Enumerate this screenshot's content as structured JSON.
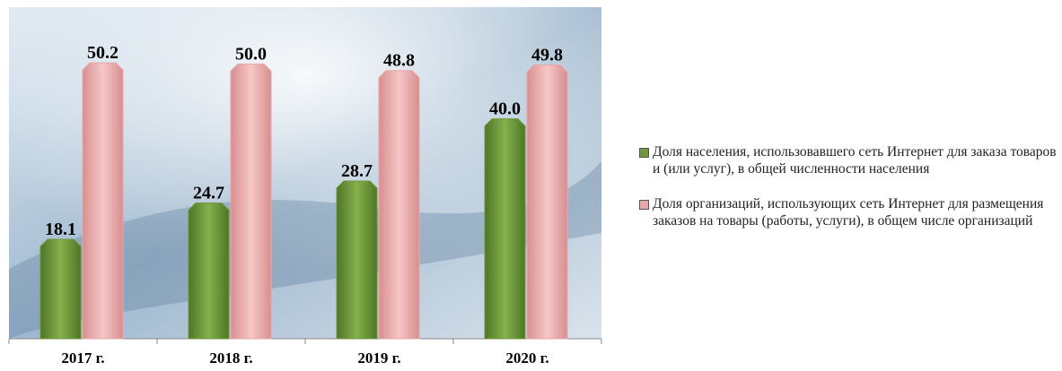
{
  "chart_data": {
    "type": "bar",
    "categories": [
      "2017 г.",
      "2018 г.",
      "2019 г.",
      "2020 г."
    ],
    "series": [
      {
        "name": "Доля населения, использовавшего сеть Интернет для заказа товаров и (или услуг), в общей численности населения",
        "color": "#6e9a3a",
        "values": [
          18.1,
          24.7,
          28.7,
          40.0
        ],
        "value_labels": [
          "18.1",
          "24.7",
          "28.7",
          "40.0"
        ]
      },
      {
        "name": "Доля организаций, использующих сеть Интернет для размещения заказов на товары (работы, услуги), в общем числе организаций",
        "color": "#e8a7a8",
        "values": [
          50.2,
          50.0,
          48.8,
          49.8
        ],
        "value_labels": [
          "50.2",
          "50.0",
          "48.8",
          "49.8"
        ]
      }
    ],
    "ylim": [
      0,
      60
    ],
    "legend": "right"
  }
}
